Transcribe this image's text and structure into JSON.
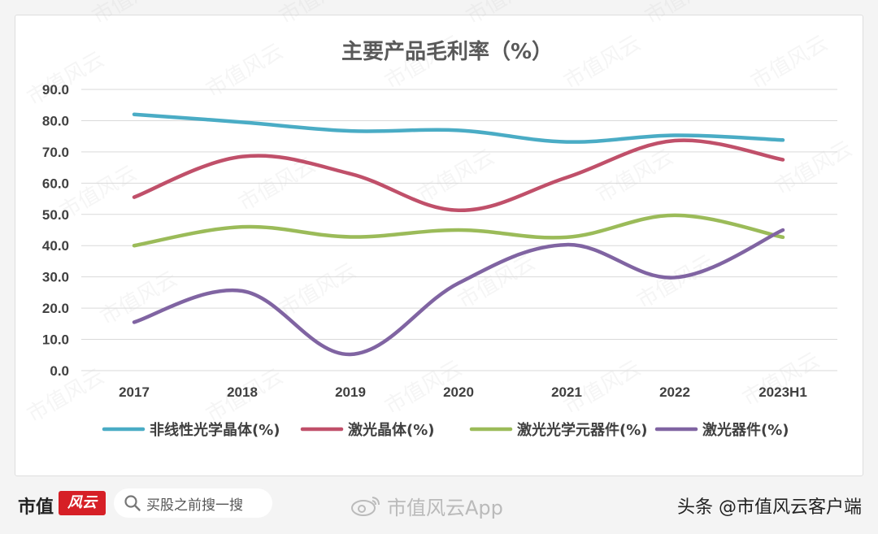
{
  "chart_data": {
    "type": "line",
    "title": "主要产品毛利率（%）",
    "categories": [
      "2017",
      "2018",
      "2019",
      "2020",
      "2021",
      "2022",
      "2023H1"
    ],
    "ylim": [
      0,
      90
    ],
    "yticks": [
      "0.0",
      "10.0",
      "20.0",
      "30.0",
      "40.0",
      "50.0",
      "60.0",
      "70.0",
      "80.0",
      "90.0"
    ],
    "grid": true,
    "smooth": true,
    "legend_position": "bottom",
    "series": [
      {
        "name": "非线性光学晶体(%)",
        "color": "#4aacc5",
        "values": [
          82.0,
          79.5,
          76.7,
          76.9,
          73.2,
          75.3,
          73.8
        ]
      },
      {
        "name": "激光晶体(%)",
        "color": "#c0506a",
        "values": [
          55.5,
          68.5,
          63.0,
          51.3,
          61.8,
          73.6,
          67.5
        ]
      },
      {
        "name": "激光光学元器件(%)",
        "color": "#9bbb59",
        "values": [
          40.0,
          46.0,
          42.8,
          45.0,
          42.7,
          49.7,
          42.7
        ]
      },
      {
        "name": "激光器件(%)",
        "color": "#8064a2",
        "values": [
          15.5,
          25.5,
          5.2,
          28.0,
          40.3,
          29.8,
          45.0
        ]
      }
    ]
  },
  "watermark_text": "市值风云",
  "footer": {
    "logo_text": "市值",
    "logo_mark": "风云",
    "search_placeholder": "买股之前搜一搜",
    "weibo_text": "市值风云App",
    "source_credit": "头条 @市值风云客户端"
  },
  "colors": {
    "brand_red": "#d61f26",
    "grid": "#d9d9d9",
    "axis_text": "#404040"
  },
  "icons": [
    "search-icon",
    "weibo-icon"
  ]
}
